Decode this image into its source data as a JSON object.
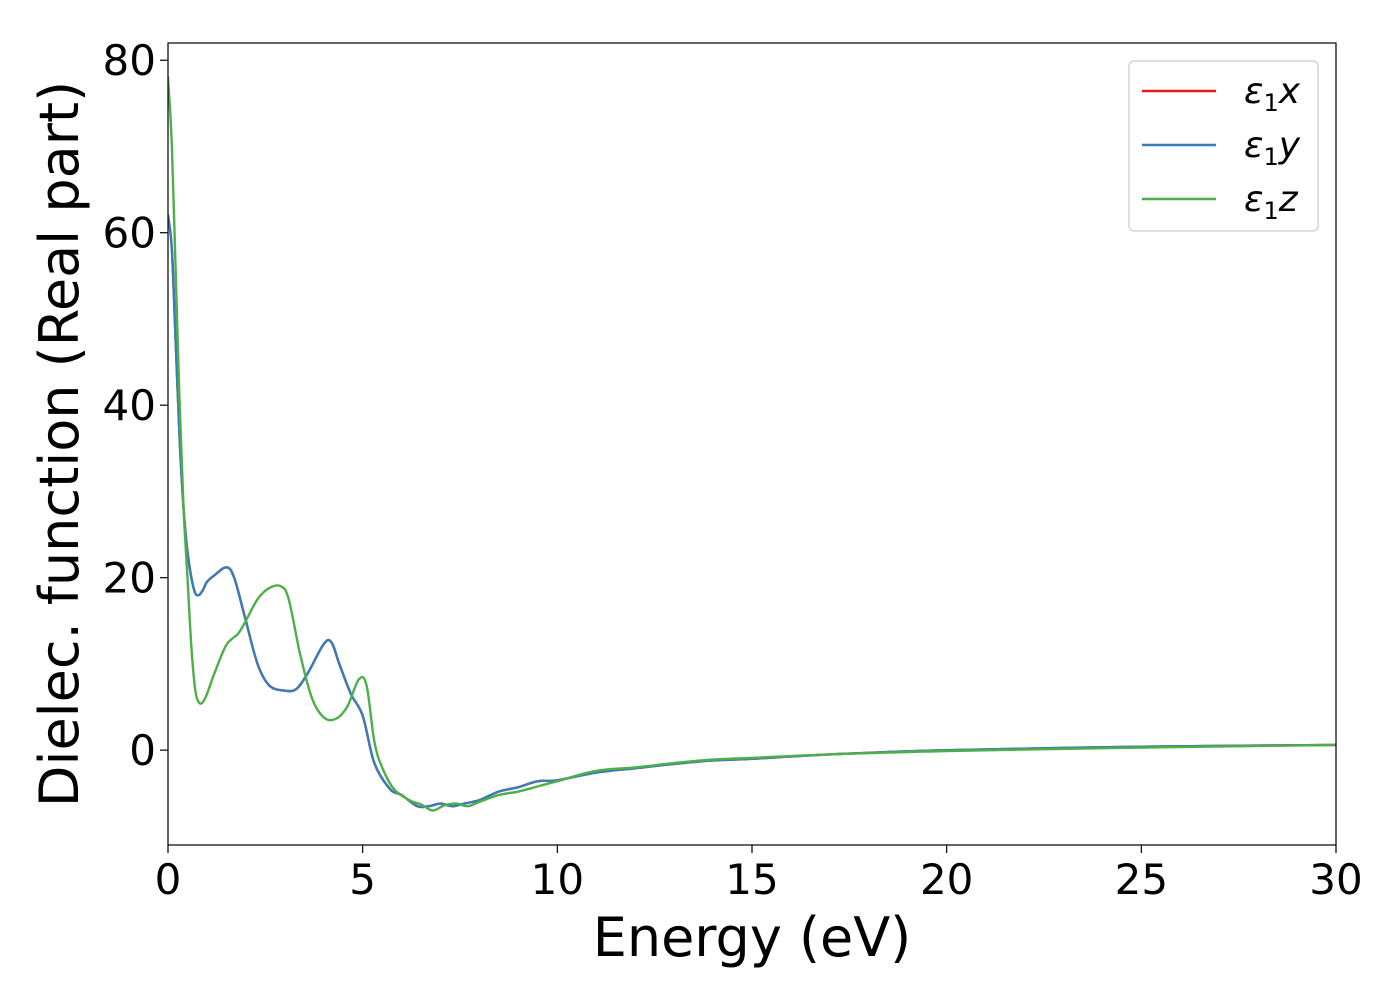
{
  "chart_data": {
    "type": "line",
    "title": "",
    "xlabel": "Energy (eV)",
    "ylabel": "Dielec. function (Real part)",
    "xlim": [
      0,
      30
    ],
    "ylim": [
      -11,
      82
    ],
    "xticks": [
      0,
      5,
      10,
      15,
      20,
      25,
      30
    ],
    "yticks": [
      0,
      20,
      40,
      60,
      80
    ],
    "grid": false,
    "legend_position": "top-right",
    "series": [
      {
        "name": "ε1x",
        "legend_base": "ε",
        "legend_sub": "1",
        "legend_suffix": "x",
        "color": "#e41a1c",
        "x": [
          0,
          0.1,
          0.2,
          0.3,
          0.4,
          0.5,
          0.6,
          0.7,
          0.8,
          0.9,
          1.0,
          1.2,
          1.5,
          1.7,
          2.0,
          2.3,
          2.6,
          3.0,
          3.3,
          3.6,
          4.0,
          4.2,
          4.4,
          4.7,
          5.0,
          5.3,
          5.7,
          6.0,
          6.4,
          6.7,
          7.0,
          7.3,
          7.6,
          8.0,
          8.5,
          9.0,
          9.5,
          10.0,
          11,
          12,
          13,
          14,
          15,
          17,
          20,
          25,
          30
        ],
        "y": [
          62,
          58,
          47,
          36,
          28,
          23,
          20,
          18.2,
          18.0,
          18.6,
          19.5,
          20.3,
          21.2,
          20,
          15,
          10,
          7.5,
          6.9,
          7.1,
          9,
          12.3,
          12.5,
          10,
          6.5,
          4,
          -1.5,
          -4.5,
          -5.2,
          -6.5,
          -6.5,
          -6.2,
          -6.5,
          -6.2,
          -5.8,
          -4.8,
          -4.3,
          -3.6,
          -3.5,
          -2.6,
          -2.1,
          -1.6,
          -1.2,
          -1.0,
          -0.5,
          0,
          0.4,
          0.6
        ]
      },
      {
        "name": "ε1y",
        "legend_base": "ε",
        "legend_sub": "1",
        "legend_suffix": "y",
        "color": "#377eb8",
        "x": [
          0,
          0.1,
          0.2,
          0.3,
          0.4,
          0.5,
          0.6,
          0.7,
          0.8,
          0.9,
          1.0,
          1.2,
          1.5,
          1.7,
          2.0,
          2.3,
          2.6,
          3.0,
          3.3,
          3.6,
          4.0,
          4.2,
          4.4,
          4.7,
          5.0,
          5.3,
          5.7,
          6.0,
          6.4,
          6.7,
          7.0,
          7.3,
          7.6,
          8.0,
          8.5,
          9.0,
          9.5,
          10.0,
          11,
          12,
          13,
          14,
          15,
          17,
          20,
          25,
          30
        ],
        "y": [
          62,
          58,
          47,
          36,
          28,
          23,
          20,
          18.2,
          18.0,
          18.6,
          19.5,
          20.3,
          21.2,
          20,
          15,
          10,
          7.5,
          6.9,
          7.1,
          9,
          12.3,
          12.5,
          10,
          6.5,
          4,
          -1.5,
          -4.5,
          -5.2,
          -6.5,
          -6.5,
          -6.2,
          -6.5,
          -6.2,
          -5.8,
          -4.8,
          -4.3,
          -3.6,
          -3.5,
          -2.6,
          -2.1,
          -1.6,
          -1.2,
          -1.0,
          -0.5,
          0,
          0.4,
          0.6
        ]
      },
      {
        "name": "ε1z",
        "legend_base": "ε",
        "legend_sub": "1",
        "legend_suffix": "z",
        "color": "#4daf4a",
        "x": [
          0,
          0.1,
          0.2,
          0.3,
          0.4,
          0.5,
          0.6,
          0.7,
          0.8,
          0.9,
          1.0,
          1.2,
          1.5,
          1.8,
          2.0,
          2.3,
          2.6,
          2.9,
          3.1,
          3.4,
          3.7,
          4.0,
          4.3,
          4.6,
          4.9,
          5.1,
          5.3,
          5.5,
          5.8,
          6.2,
          6.5,
          6.8,
          7.1,
          7.4,
          7.7,
          8.0,
          8.5,
          9.0,
          9.5,
          10.0,
          11,
          12,
          13,
          14,
          15,
          17,
          20,
          25,
          30
        ],
        "y": [
          78,
          70,
          55,
          40,
          28,
          20,
          12,
          7,
          5.5,
          5.6,
          6.5,
          9,
          12.2,
          13.5,
          15,
          17.5,
          18.8,
          19,
          17.5,
          11,
          6,
          3.8,
          3.6,
          5,
          8.2,
          7.5,
          1,
          -2,
          -4.5,
          -5.8,
          -6.3,
          -7,
          -6.4,
          -6.2,
          -6.5,
          -6.0,
          -5.2,
          -4.8,
          -4.2,
          -3.6,
          -2.4,
          -2.0,
          -1.5,
          -1.1,
          -0.9,
          -0.5,
          -0.1,
          0.3,
          0.6
        ]
      }
    ]
  }
}
